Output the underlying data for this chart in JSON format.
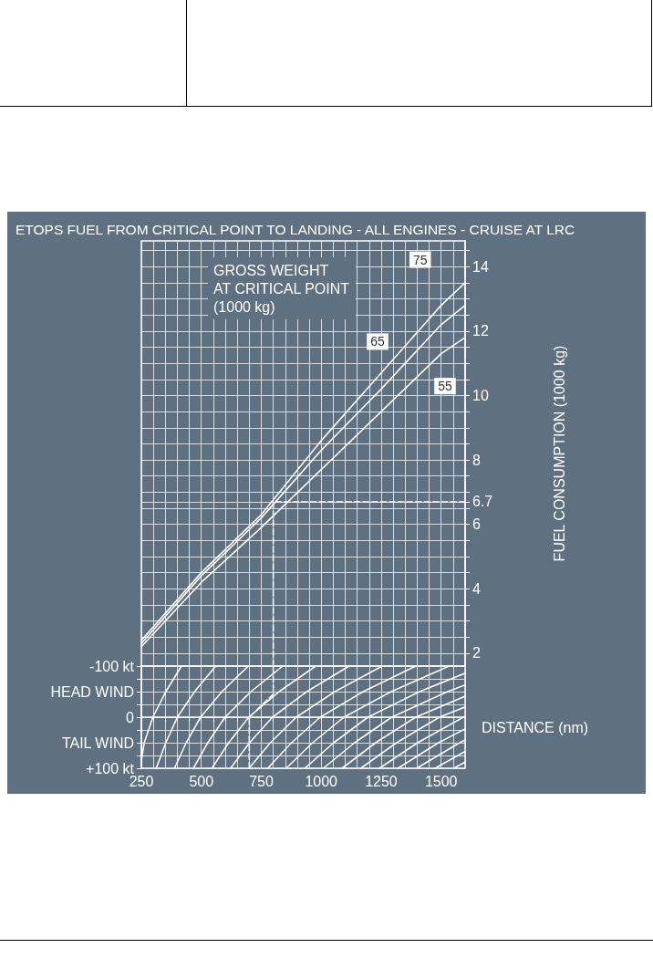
{
  "chart_data": [
    {
      "type": "line",
      "title": "ETOPS FUEL FROM CRITICAL POINT TO LANDING - ALL ENGINES - CRUISE AT LRC",
      "ylabel": "FUEL CONSUMPTION (1000 kg)",
      "legend_title": "GROSS WEIGHT\nAT CRITICAL POINT\n(1000 kg)",
      "xlim": [
        250,
        1600
      ],
      "xticks": [
        250,
        {
          "value": 300,
          "label": null
        },
        {
          "value": 350,
          "label": null
        },
        {
          "value": 400,
          "label": null
        },
        {
          "value": 450,
          "label": null
        },
        500,
        {
          "value": 550,
          "label": null
        },
        {
          "value": 600,
          "label": null
        },
        {
          "value": 650,
          "label": null
        },
        {
          "value": 700,
          "label": null
        },
        750,
        {
          "value": 800,
          "label": null
        },
        {
          "value": 850,
          "label": null
        },
        {
          "value": 900,
          "label": null
        },
        {
          "value": 950,
          "label": null
        },
        1000,
        {
          "value": 1050,
          "label": null
        },
        {
          "value": 1100,
          "label": null
        },
        {
          "value": 1150,
          "label": null
        },
        {
          "value": 1200,
          "label": null
        },
        1250,
        {
          "value": 1300,
          "label": null
        },
        {
          "value": 1350,
          "label": null
        },
        {
          "value": 1400,
          "label": null
        },
        {
          "value": 1450,
          "label": null
        },
        1500,
        {
          "value": 1550,
          "label": null
        },
        {
          "value": 1600,
          "label": null
        }
      ],
      "ylim": [
        1.6,
        14.8
      ],
      "yticks": [
        2,
        {
          "value": 2.5,
          "label": null
        },
        {
          "value": 3,
          "label": null
        },
        {
          "value": 3.5,
          "label": null
        },
        4,
        {
          "value": 4.5,
          "label": null
        },
        {
          "value": 5,
          "label": null
        },
        {
          "value": 5.5,
          "label": null
        },
        6,
        {
          "value": 6.5,
          "label": null
        },
        6.7,
        {
          "value": 7,
          "label": null
        },
        {
          "value": 7.5,
          "label": null
        },
        8,
        {
          "value": 8.5,
          "label": null
        },
        {
          "value": 9,
          "label": null
        },
        {
          "value": 9.5,
          "label": null
        },
        10,
        {
          "value": 10.5,
          "label": null
        },
        {
          "value": 11,
          "label": null
        },
        {
          "value": 11.5,
          "label": null
        },
        12,
        {
          "value": 12.5,
          "label": null
        },
        {
          "value": 13,
          "label": null
        },
        {
          "value": 13.5,
          "label": null
        },
        14,
        {
          "value": 14.5,
          "label": null
        }
      ],
      "grid": true,
      "tick_labels": "y",
      "marker": "none",
      "series": [
        {
          "name": "75",
          "color": "#ffffff",
          "x": [
            250,
            500,
            750,
            1000,
            1250,
            1500,
            1600
          ],
          "values": [
            2.4,
            4.5,
            6.3,
            8.6,
            10.7,
            12.8,
            13.5
          ]
        },
        {
          "name": "65",
          "color": "#ffffff",
          "x": [
            250,
            500,
            750,
            1000,
            1250,
            1500,
            1600
          ],
          "values": [
            2.3,
            4.4,
            6.2,
            8.3,
            10.2,
            12.2,
            12.8
          ]
        },
        {
          "name": "55",
          "color": "#ffffff",
          "x": [
            250,
            500,
            750,
            1000,
            1250,
            1500,
            1600
          ],
          "values": [
            2.2,
            4.2,
            5.9,
            7.7,
            9.5,
            11.3,
            11.8
          ]
        },
        {
          "color": "#ffffff",
          "line_style": "dashed",
          "x": [
            800,
            800,
            1600
          ],
          "values": [
            1.6,
            6.7,
            6.7
          ]
        }
      ]
    },
    {
      "type": "line",
      "xlabel": "DISTANCE (nm)",
      "xlim": [
        250,
        1600
      ],
      "xticks": [
        250,
        {
          "value": 300,
          "label": null
        },
        {
          "value": 350,
          "label": null
        },
        {
          "value": 400,
          "label": null
        },
        {
          "value": 450,
          "label": null
        },
        500,
        {
          "value": 550,
          "label": null
        },
        {
          "value": 600,
          "label": null
        },
        {
          "value": 650,
          "label": null
        },
        {
          "value": 700,
          "label": null
        },
        750,
        {
          "value": 800,
          "label": null
        },
        {
          "value": 850,
          "label": null
        },
        {
          "value": 900,
          "label": null
        },
        {
          "value": 950,
          "label": null
        },
        1000,
        {
          "value": 1050,
          "label": null
        },
        {
          "value": 1100,
          "label": null
        },
        {
          "value": 1150,
          "label": null
        },
        {
          "value": 1200,
          "label": null
        },
        1250,
        {
          "value": 1300,
          "label": null
        },
        {
          "value": 1350,
          "label": null
        },
        {
          "value": 1400,
          "label": null
        },
        {
          "value": 1450,
          "label": null
        },
        1500,
        {
          "value": 1550,
          "label": null
        },
        {
          "value": 1600,
          "label": null
        }
      ],
      "ylim": [
        100,
        -100
      ],
      "yticks": [
        {
          "value": -100,
          "label": "-100 kt"
        },
        {
          "value": -75,
          "label": null
        },
        {
          "value": -50,
          "label": "HEAD WIND"
        },
        {
          "value": -25,
          "label": null
        },
        0,
        {
          "value": 25,
          "label": null
        },
        {
          "value": 50,
          "label": "TAIL WIND"
        },
        {
          "value": 75,
          "label": null
        },
        {
          "value": 100,
          "label": "+100 kt"
        }
      ],
      "grid": true,
      "marker": "none",
      "series": [
        {
          "color": "#ffffff",
          "x": [
            417,
            352,
            298,
            262,
            250
          ],
          "values": [
            -100,
            -50,
            0,
            50,
            85
          ]
        },
        {
          "color": "#ffffff",
          "x": [
            560,
            472,
            400,
            352,
            312
          ],
          "values": [
            -100,
            -50,
            0,
            50,
            100
          ]
        },
        {
          "color": "#ffffff",
          "x": [
            696,
            586,
            497,
            437,
            388
          ],
          "values": [
            -100,
            -50,
            0,
            50,
            100
          ]
        },
        {
          "color": "#ffffff",
          "x": [
            839,
            707,
            599,
            527,
            467
          ],
          "values": [
            -100,
            -50,
            0,
            50,
            100
          ]
        },
        {
          "color": "#ffffff",
          "x": [
            977,
            824,
            698,
            614,
            544
          ],
          "values": [
            -100,
            -50,
            0,
            50,
            100
          ]
        },
        {
          "color": "#ffffff",
          "x": [
            1116,
            940,
            797,
            701,
            622
          ],
          "values": [
            -100,
            -50,
            0,
            50,
            100
          ]
        },
        {
          "color": "#ffffff",
          "x": [
            1254,
            1057,
            896,
            788,
            699
          ],
          "values": [
            -100,
            -50,
            0,
            50,
            100
          ]
        },
        {
          "color": "#ffffff",
          "x": [
            1394,
            1175,
            996,
            876,
            777
          ],
          "values": [
            -100,
            -50,
            0,
            50,
            100
          ]
        },
        {
          "color": "#ffffff",
          "x": [
            1533,
            1292,
            1095,
            964,
            854
          ],
          "values": [
            -100,
            -50,
            0,
            50,
            100
          ]
        },
        {
          "color": "#ffffff",
          "x": [
            1600,
            1410,
            1195,
            1052,
            932
          ],
          "values": [
            -86,
            -50,
            0,
            50,
            100
          ]
        },
        {
          "color": "#ffffff",
          "x": [
            1600,
            1527,
            1294,
            1139,
            1009
          ],
          "values": [
            -63,
            -50,
            0,
            50,
            100
          ]
        },
        {
          "color": "#ffffff",
          "x": [
            1600,
            1394,
            1227,
            1087
          ],
          "values": [
            -41,
            0,
            50,
            100
          ]
        },
        {
          "color": "#ffffff",
          "x": [
            1600,
            1493,
            1314,
            1165
          ],
          "values": [
            -20,
            0,
            50,
            100
          ]
        },
        {
          "color": "#ffffff",
          "x": [
            1600,
            1593,
            1402,
            1243
          ],
          "values": [
            -1,
            0,
            50,
            100
          ]
        },
        {
          "color": "#ffffff",
          "x": [
            1600,
            1489,
            1320
          ],
          "values": [
            23,
            50,
            100
          ]
        },
        {
          "color": "#ffffff",
          "x": [
            1600,
            1577,
            1398
          ],
          "values": [
            45,
            50,
            100
          ]
        },
        {
          "color": "#ffffff",
          "x": [
            1600,
            1475
          ],
          "values": [
            67,
            100
          ]
        },
        {
          "color": "#ffffff",
          "x": [
            1600,
            1552
          ],
          "values": [
            88,
            100
          ]
        },
        {
          "color": "#ffffff",
          "line_style": "dashed",
          "x": [
            700,
            700,
            800,
            800
          ],
          "values": [
            100,
            0,
            -45,
            -100
          ]
        }
      ]
    }
  ]
}
